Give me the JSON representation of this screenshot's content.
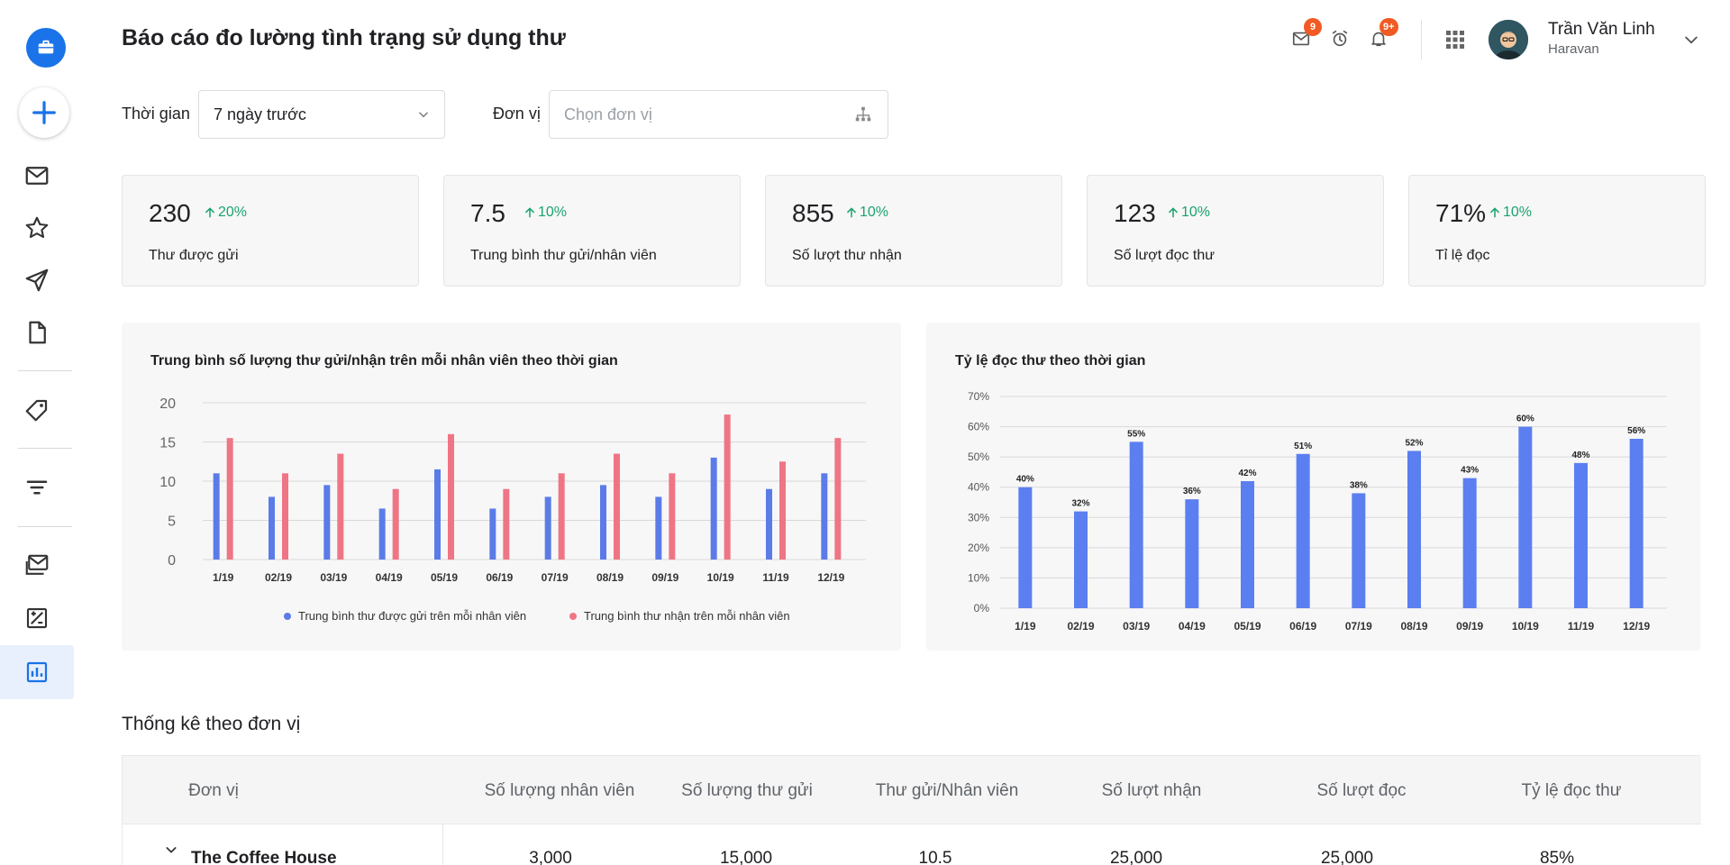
{
  "header": {
    "title": "Báo cáo đo lường tình trạng sử dụng thư",
    "mail_badge": "9",
    "notification_badge": "9+",
    "user_name": "Trần Văn Linh",
    "user_org": "Haravan"
  },
  "sidebar": {
    "items": [
      {
        "icon": "briefcase-icon"
      },
      {
        "icon": "plus-icon"
      },
      {
        "icon": "mail-icon"
      },
      {
        "icon": "star-icon"
      },
      {
        "icon": "send-icon"
      },
      {
        "icon": "document-icon"
      },
      {
        "icon": "tag-icon"
      },
      {
        "icon": "filter-icon"
      },
      {
        "icon": "mail-stack-icon"
      },
      {
        "icon": "image-edit-icon"
      },
      {
        "icon": "bar-chart-icon",
        "active": true
      }
    ]
  },
  "filters": {
    "time_label": "Thời gian",
    "time_value": "7 ngày trước",
    "unit_label": "Đơn vị",
    "unit_placeholder": "Chọn đơn vị"
  },
  "stats": [
    {
      "value": "230",
      "change": "20%",
      "label": "Thư được gửi"
    },
    {
      "value": "7.5",
      "change": "10%",
      "label": "Trung bình thư gửi/nhân viên"
    },
    {
      "value": "855",
      "change": "10%",
      "label": "Số lượt thư nhận"
    },
    {
      "value": "123",
      "change": "10%",
      "label": "Số lượt đọc thư"
    },
    {
      "value": "71%",
      "change": "10%",
      "label": "Tỉ lệ đọc"
    }
  ],
  "colors": {
    "sent": "#5b7be8",
    "received": "#ef7585",
    "rate": "#5b7ff0",
    "positive": "#1aa36f",
    "accent": "#1a73e8"
  },
  "chart_data": [
    {
      "type": "bar",
      "title": "Trung bình số lượng thư gửi/nhận trên mỗi nhân viên theo thời gian",
      "categories": [
        "1/19",
        "02/19",
        "03/19",
        "04/19",
        "05/19",
        "06/19",
        "07/19",
        "08/19",
        "09/19",
        "10/19",
        "11/19",
        "12/19"
      ],
      "series": [
        {
          "name": "Trung bình thư được gửi trên mỗi nhân viên",
          "values": [
            11,
            8,
            9.5,
            6.5,
            11.5,
            6.5,
            8,
            9.5,
            8,
            13,
            9,
            11
          ]
        },
        {
          "name": "Trung bình thư nhận trên mỗi nhân viên",
          "values": [
            15.5,
            11,
            13.5,
            9,
            16,
            9,
            11,
            13.5,
            11,
            18.5,
            12.5,
            15.5
          ]
        }
      ],
      "ylim": [
        0,
        20
      ],
      "yticks": [
        "0",
        "5",
        "10",
        "15",
        "20"
      ],
      "legend": "bottom",
      "grid": true
    },
    {
      "type": "bar",
      "title": "Tỷ lệ đọc thư theo thời gian",
      "categories": [
        "1/19",
        "02/19",
        "03/19",
        "04/19",
        "05/19",
        "06/19",
        "07/19",
        "08/19",
        "09/19",
        "10/19",
        "11/19",
        "12/19"
      ],
      "series": [
        {
          "values": [
            40,
            32,
            55,
            36,
            42,
            51,
            38,
            52,
            43,
            60,
            48,
            56
          ],
          "labels": [
            "40%",
            "32%",
            "55%",
            "36%",
            "42%",
            "51%",
            "38%",
            "52%",
            "43%",
            "60%",
            "48%",
            "56%"
          ]
        }
      ],
      "ylim": [
        0,
        70
      ],
      "yticks": [
        "0%",
        "10%",
        "20%",
        "30%",
        "40%",
        "50%",
        "60%",
        "70%"
      ],
      "grid": true
    }
  ],
  "table": {
    "title": "Thống kê theo đơn vị",
    "headers": [
      "Đơn vị",
      "Số lượng nhân viên",
      "Số lượng thư gửi",
      "Thư gửi/Nhân viên",
      "Số lượt nhận",
      "Số lượt đọc",
      "Tỷ lệ đọc thư"
    ],
    "rows": [
      {
        "unit": "The Coffee House",
        "cells": [
          "3,000",
          "15,000",
          "10.5",
          "25,000",
          "25,000",
          "85%"
        ]
      }
    ]
  }
}
